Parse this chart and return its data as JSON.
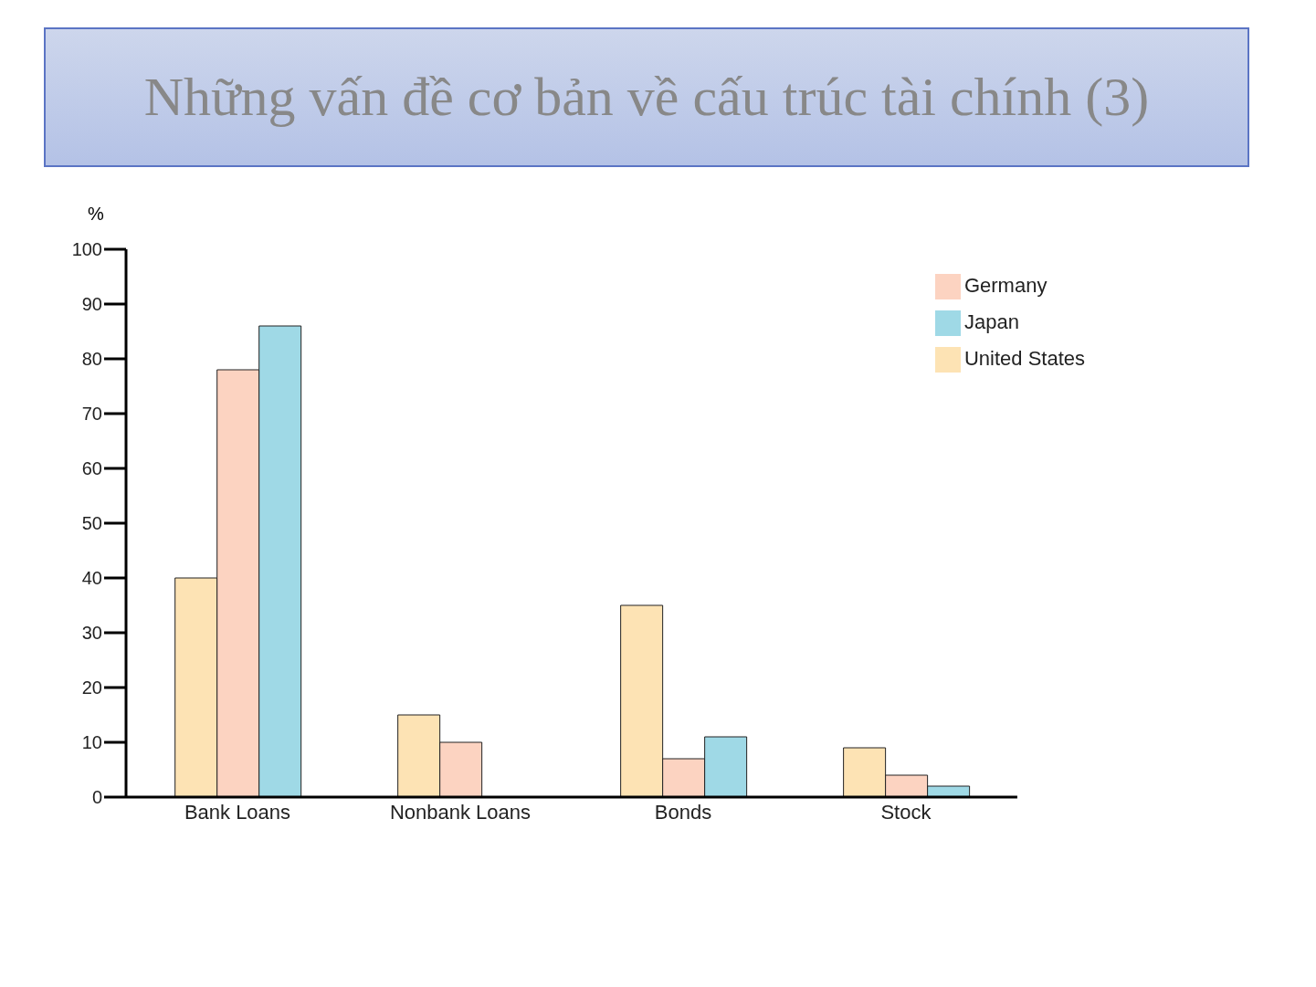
{
  "chart_data": {
    "type": "bar",
    "title": "Những vấn đề cơ bản về cấu trúc tài chính (3)",
    "ylabel": "%",
    "categories": [
      "Bank Loans",
      "Nonbank Loans",
      "Bonds",
      "Stock"
    ],
    "series": [
      {
        "name": "United States",
        "color": "#fde3b4",
        "values": [
          40,
          15,
          35,
          9
        ]
      },
      {
        "name": "Germany",
        "color": "#fcd3c1",
        "values": [
          78,
          10,
          7,
          4
        ]
      },
      {
        "name": "Japan",
        "color": "#9fd9e6",
        "values": [
          86,
          0,
          11,
          2
        ]
      }
    ],
    "ylim": [
      0,
      100
    ],
    "yticks": [
      0,
      10,
      20,
      30,
      40,
      50,
      60,
      70,
      80,
      90,
      100
    ],
    "grid": false,
    "legend": "top right"
  }
}
